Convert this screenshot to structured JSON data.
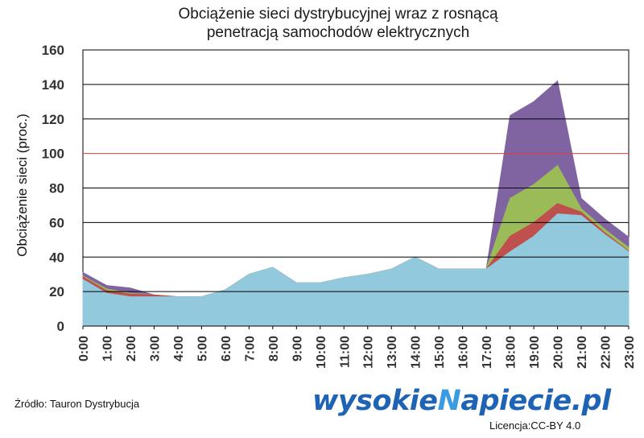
{
  "chart_data": {
    "type": "area",
    "title": [
      "Obciążenie sieci dystrybucyjnej wraz z rosnącą",
      "penetracją samochodów elektrycznych"
    ],
    "ylabel": "Obciążenie sieci (proc.)",
    "xlabel": "",
    "ylim": [
      0,
      160
    ],
    "yticks": [
      0,
      20,
      40,
      60,
      80,
      100,
      120,
      140,
      160
    ],
    "categories": [
      "0:00",
      "1:00",
      "2:00",
      "3:00",
      "4:00",
      "5:00",
      "6:00",
      "7:00",
      "8:00",
      "9:00",
      "10:00",
      "11:00",
      "12:00",
      "13:00",
      "14:00",
      "15:00",
      "16:00",
      "17:00",
      "18:00",
      "19:00",
      "20:00",
      "21:00",
      "22:00",
      "23:00"
    ],
    "stacked": true,
    "series": [
      {
        "color": "#93c9dd",
        "values": [
          27,
          19,
          17,
          17,
          17,
          17,
          21,
          30,
          34,
          25,
          25,
          28,
          30,
          33,
          40,
          33,
          33,
          33,
          43,
          52,
          65,
          64,
          53,
          43
        ]
      },
      {
        "color": "#c0504d",
        "values": [
          1.5,
          1.5,
          1.5,
          1,
          0,
          0,
          0,
          0,
          0,
          0,
          0,
          0,
          0,
          0,
          0,
          0,
          0,
          0,
          9,
          8,
          6,
          2,
          1,
          0.5
        ]
      },
      {
        "color": "#9bbb59",
        "values": [
          0.5,
          1,
          0.5,
          0,
          0,
          0,
          0,
          0,
          0,
          0,
          0,
          0,
          0,
          0,
          0,
          0,
          0,
          0,
          22,
          22,
          22,
          2,
          2,
          2
        ]
      },
      {
        "color": "#8064a2",
        "values": [
          2,
          2,
          3,
          0,
          0,
          0,
          0,
          0,
          0,
          0,
          0,
          0,
          0,
          0,
          0,
          0,
          0,
          0,
          48,
          48,
          49,
          6,
          6,
          6
        ]
      }
    ],
    "reference_line": {
      "value": 100,
      "color": "#e03c3c"
    },
    "grid": true
  },
  "footer": {
    "source": "Źródło: Tauron Dystrybucja",
    "logo_left": "wysokie",
    "logo_bolt": "N",
    "logo_right": "apiecie.pl",
    "license": "Licencja:CC-BY 4.0"
  }
}
